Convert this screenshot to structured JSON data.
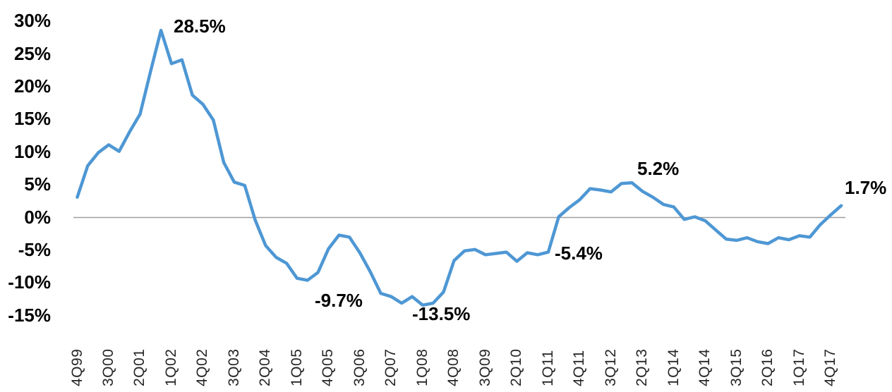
{
  "chart_data": {
    "type": "line",
    "title": "",
    "xlabel": "",
    "ylabel": "",
    "ylim": [
      -15,
      30
    ],
    "grid": "zero-line-only",
    "legend": "none",
    "colors": {
      "series_line": "#4E97D4",
      "zero_line": "#9E9E9E",
      "data_label_text": "#000000",
      "axis_label_text": "#262626"
    },
    "x": [
      "4Q99",
      "1Q00",
      "2Q00",
      "3Q00",
      "4Q00",
      "1Q01",
      "2Q01",
      "3Q01",
      "4Q01",
      "1Q02",
      "2Q02",
      "3Q02",
      "4Q02",
      "1Q03",
      "2Q03",
      "3Q03",
      "4Q03",
      "1Q04",
      "2Q04",
      "3Q04",
      "4Q04",
      "1Q05",
      "2Q05",
      "3Q05",
      "4Q05",
      "1Q06",
      "2Q06",
      "3Q06",
      "4Q06",
      "1Q07",
      "2Q07",
      "3Q07",
      "4Q07",
      "1Q08",
      "2Q08",
      "3Q08",
      "4Q08",
      "1Q09",
      "2Q09",
      "3Q09",
      "4Q09",
      "1Q10",
      "2Q10",
      "3Q10",
      "4Q10",
      "1Q11",
      "2Q11",
      "3Q11",
      "4Q11",
      "1Q12",
      "2Q12",
      "3Q12",
      "4Q12",
      "1Q13",
      "2Q13",
      "3Q13",
      "4Q13",
      "1Q14",
      "2Q14",
      "3Q14",
      "4Q14",
      "1Q15",
      "2Q15",
      "3Q15",
      "4Q15",
      "1Q16",
      "2Q16",
      "3Q16",
      "4Q16",
      "1Q17",
      "2Q17",
      "3Q17",
      "4Q17",
      "1Q18"
    ],
    "values": [
      3.0,
      7.8,
      9.8,
      11.0,
      10.0,
      13.0,
      15.7,
      22.2,
      28.5,
      23.4,
      24.0,
      18.6,
      17.2,
      14.8,
      8.3,
      5.3,
      4.8,
      -0.5,
      -4.4,
      -6.2,
      -7.1,
      -9.4,
      -9.7,
      -8.5,
      -4.9,
      -2.8,
      -3.1,
      -5.5,
      -8.4,
      -11.7,
      -12.2,
      -13.2,
      -12.2,
      -13.5,
      -13.2,
      -11.5,
      -6.7,
      -5.2,
      -5.0,
      -5.8,
      -5.6,
      -5.4,
      -6.8,
      -5.5,
      -5.8,
      -5.4,
      0.0,
      1.4,
      2.6,
      4.3,
      4.1,
      3.8,
      5.1,
      5.2,
      3.9,
      3.0,
      1.9,
      1.5,
      -0.4,
      0.0,
      -0.6,
      -2.0,
      -3.4,
      -3.6,
      -3.2,
      -3.8,
      -4.1,
      -3.2,
      -3.5,
      -2.9,
      -3.1,
      -1.2,
      0.3,
      1.7
    ],
    "y_ticks": [
      {
        "label": "30%",
        "value": 30
      },
      {
        "label": "25%",
        "value": 25
      },
      {
        "label": "20%",
        "value": 20
      },
      {
        "label": "15%",
        "value": 15
      },
      {
        "label": "10%",
        "value": 10
      },
      {
        "label": "5%",
        "value": 5
      },
      {
        "label": "0%",
        "value": 0
      },
      {
        "label": "-5%",
        "value": -5
      },
      {
        "label": "-10%",
        "value": -10
      },
      {
        "label": "-15%",
        "value": -15
      }
    ],
    "x_tick_labels": [
      "4Q99",
      "3Q00",
      "2Q01",
      "1Q02",
      "4Q02",
      "3Q03",
      "2Q04",
      "1Q05",
      "4Q05",
      "3Q06",
      "2Q07",
      "1Q08",
      "4Q08",
      "3Q09",
      "2Q10",
      "1Q11",
      "4Q11",
      "3Q12",
      "2Q13",
      "1Q14",
      "4Q14",
      "3Q15",
      "2Q16",
      "1Q17",
      "4Q17"
    ],
    "annotations": [
      {
        "text": "28.5%",
        "point": "4Q01"
      },
      {
        "text": "-9.7%",
        "point": "2Q05"
      },
      {
        "text": "-13.5%",
        "point": "1Q08"
      },
      {
        "text": "-5.4%",
        "point": "1Q11"
      },
      {
        "text": "5.2%",
        "point": "1Q13"
      },
      {
        "text": "1.7%",
        "point": "1Q18"
      }
    ]
  }
}
